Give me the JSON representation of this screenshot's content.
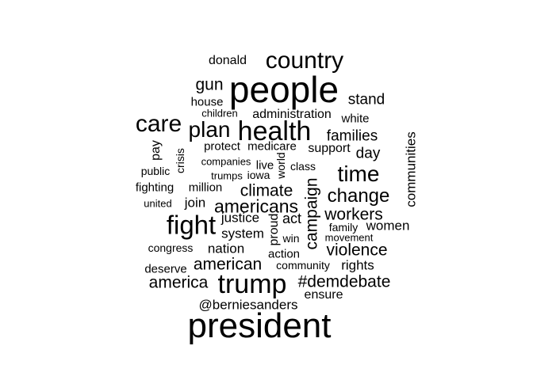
{
  "cloud": {
    "text_color": "#000000",
    "background": "#ffffff",
    "words": [
      {
        "text": "donald"
      },
      {
        "text": "country"
      },
      {
        "text": "gun"
      },
      {
        "text": "people"
      },
      {
        "text": "house"
      },
      {
        "text": "stand"
      },
      {
        "text": "children"
      },
      {
        "text": "administration"
      },
      {
        "text": "white"
      },
      {
        "text": "care"
      },
      {
        "text": "plan"
      },
      {
        "text": "health"
      },
      {
        "text": "families"
      },
      {
        "text": "protect"
      },
      {
        "text": "medicare"
      },
      {
        "text": "support"
      },
      {
        "text": "day"
      },
      {
        "text": "pay"
      },
      {
        "text": "crisis"
      },
      {
        "text": "companies"
      },
      {
        "text": "live"
      },
      {
        "text": "world"
      },
      {
        "text": "class"
      },
      {
        "text": "public"
      },
      {
        "text": "trumps"
      },
      {
        "text": "iowa"
      },
      {
        "text": "time"
      },
      {
        "text": "communities"
      },
      {
        "text": "fighting"
      },
      {
        "text": "million"
      },
      {
        "text": "climate"
      },
      {
        "text": "campaign"
      },
      {
        "text": "change"
      },
      {
        "text": "united"
      },
      {
        "text": "join"
      },
      {
        "text": "americans"
      },
      {
        "text": "fight"
      },
      {
        "text": "justice"
      },
      {
        "text": "act"
      },
      {
        "text": "workers"
      },
      {
        "text": "proud"
      },
      {
        "text": "family"
      },
      {
        "text": "women"
      },
      {
        "text": "system"
      },
      {
        "text": "win"
      },
      {
        "text": "movement"
      },
      {
        "text": "congress"
      },
      {
        "text": "nation"
      },
      {
        "text": "action"
      },
      {
        "text": "violence"
      },
      {
        "text": "american"
      },
      {
        "text": "community"
      },
      {
        "text": "rights"
      },
      {
        "text": "deserve"
      },
      {
        "text": "america"
      },
      {
        "text": "trump"
      },
      {
        "text": "#demdebate"
      },
      {
        "text": "ensure"
      },
      {
        "text": "@berniesanders"
      },
      {
        "text": "president"
      }
    ]
  }
}
